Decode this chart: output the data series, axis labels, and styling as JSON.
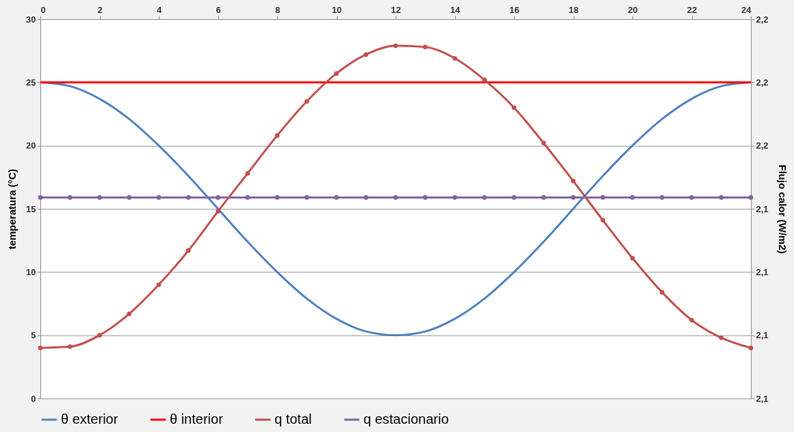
{
  "chart_data": {
    "type": "line",
    "xlim": [
      0,
      24
    ],
    "xticks": [
      0,
      2,
      4,
      6,
      8,
      10,
      12,
      14,
      16,
      18,
      20,
      22,
      24
    ],
    "ylim": [
      0,
      30
    ],
    "yticks": [
      0,
      5,
      10,
      15,
      20,
      25,
      30
    ],
    "ylabel": "temperatura (°C)",
    "y2label": "Flujo calor (W/m2)",
    "y2lim": [
      2.115,
      2.175
    ],
    "y2ticks": [
      {
        "value": 2.115,
        "label": "2,1"
      },
      {
        "value": 2.125,
        "label": "2,1"
      },
      {
        "value": 2.135,
        "label": "2,1"
      },
      {
        "value": 2.145,
        "label": "2,1"
      },
      {
        "value": 2.155,
        "label": "2,2"
      },
      {
        "value": 2.165,
        "label": "2,2"
      },
      {
        "value": 2.175,
        "label": "2,2"
      }
    ],
    "grid": "y",
    "legend": "bottom",
    "series": [
      {
        "name": "θ exterior",
        "color": "#4f81bd",
        "marker": "none",
        "x": [
          0,
          1,
          2,
          3,
          4,
          5,
          6,
          7,
          8,
          9,
          10,
          11,
          12,
          13,
          14,
          15,
          16,
          17,
          18,
          19,
          20,
          21,
          22,
          23,
          24
        ],
        "values": [
          25,
          24.7,
          23.7,
          22.1,
          20,
          17.6,
          15,
          12.4,
          10,
          7.9,
          6.3,
          5.3,
          5,
          5.3,
          6.3,
          7.9,
          10,
          12.4,
          15,
          17.6,
          20,
          22.1,
          23.7,
          24.7,
          25
        ]
      },
      {
        "name": "θ interior",
        "color": "#ff0000",
        "marker": "none",
        "x": [
          0,
          24
        ],
        "values": [
          25,
          25
        ]
      },
      {
        "name": "q total",
        "color": "#c0504d",
        "marker": "circle",
        "axis": "y2",
        "x": [
          0,
          1,
          2,
          3,
          4,
          5,
          6,
          7,
          8,
          9,
          10,
          11,
          12,
          13,
          14,
          15,
          16,
          17,
          18,
          19,
          20,
          21,
          22,
          23,
          24
        ],
        "values": [
          2.123,
          2.1232,
          2.125,
          2.1284,
          2.133,
          2.1384,
          2.1446,
          2.1506,
          2.1566,
          2.162,
          2.1664,
          2.1694,
          2.1708,
          2.1706,
          2.1688,
          2.1654,
          2.161,
          2.1554,
          2.1494,
          2.1432,
          2.1372,
          2.1318,
          2.1274,
          2.1246,
          2.123
        ]
      },
      {
        "name": "q estacionario",
        "color": "#8064a2",
        "marker": "circle",
        "axis": "y2",
        "x": [
          0,
          1,
          2,
          3,
          4,
          5,
          6,
          7,
          8,
          9,
          10,
          11,
          12,
          13,
          14,
          15,
          16,
          17,
          18,
          19,
          20,
          21,
          22,
          23,
          24
        ],
        "values": [
          2.1468,
          2.1468,
          2.1468,
          2.1468,
          2.1468,
          2.1468,
          2.1468,
          2.1468,
          2.1468,
          2.1468,
          2.1468,
          2.1468,
          2.1468,
          2.1468,
          2.1468,
          2.1468,
          2.1468,
          2.1468,
          2.1468,
          2.1468,
          2.1468,
          2.1468,
          2.1468,
          2.1468,
          2.1468
        ]
      }
    ]
  }
}
